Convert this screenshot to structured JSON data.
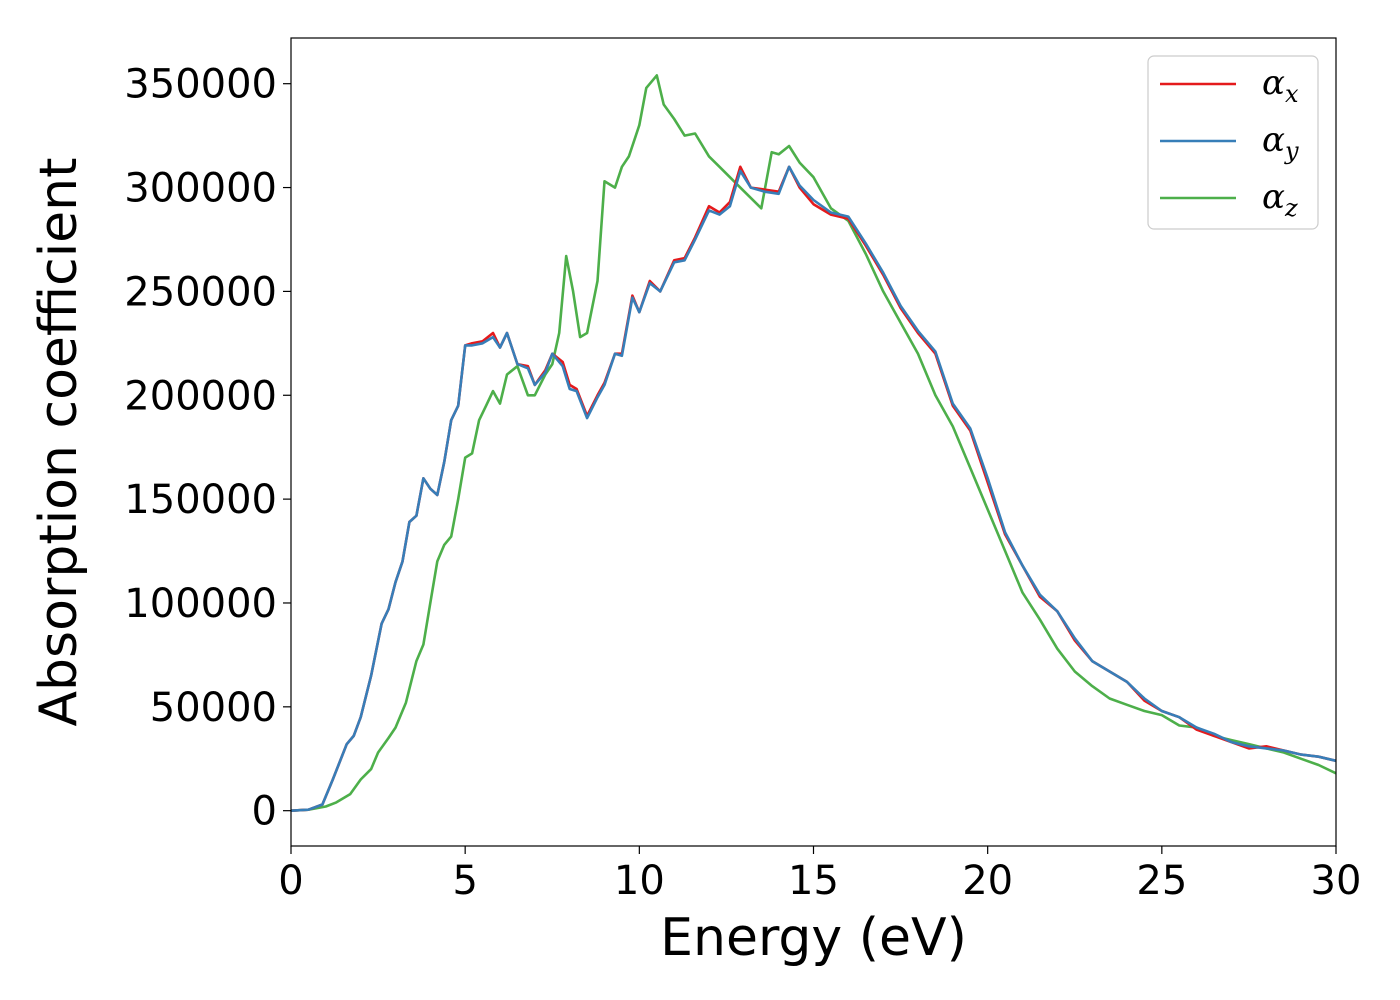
{
  "chart_data": {
    "type": "line",
    "title": "",
    "xlabel": "Energy (eV)",
    "ylabel": "Absorption coefficient",
    "xlim": [
      0,
      30
    ],
    "ylim": [
      -17000,
      372000
    ],
    "xticks": [
      0,
      5,
      10,
      15,
      20,
      25,
      30
    ],
    "yticks": [
      0,
      50000,
      100000,
      150000,
      200000,
      250000,
      300000,
      350000
    ],
    "xtick_labels": [
      "0",
      "5",
      "10",
      "15",
      "20",
      "25",
      "30"
    ],
    "ytick_labels": [
      "0",
      "50000",
      "100000",
      "150000",
      "200000",
      "250000",
      "300000",
      "350000"
    ],
    "grid": false,
    "legend_position": "top-right",
    "legend": [
      {
        "base": "α",
        "sub": "x",
        "color": "#e41a1c"
      },
      {
        "base": "α",
        "sub": "y",
        "color": "#377eb8"
      },
      {
        "base": "α",
        "sub": "z",
        "color": "#4daf4a"
      }
    ],
    "series": [
      {
        "name": "αx",
        "color": "#e41a1c",
        "x": [
          0,
          0.5,
          0.9,
          1.2,
          1.6,
          1.8,
          2.0,
          2.3,
          2.6,
          2.8,
          3.0,
          3.2,
          3.4,
          3.6,
          3.8,
          4.0,
          4.2,
          4.4,
          4.6,
          4.8,
          5.0,
          5.2,
          5.5,
          5.8,
          6.0,
          6.2,
          6.5,
          6.8,
          7.0,
          7.3,
          7.5,
          7.8,
          8.0,
          8.2,
          8.5,
          8.8,
          9.0,
          9.3,
          9.5,
          9.8,
          10.0,
          10.3,
          10.6,
          11.0,
          11.3,
          11.6,
          12.0,
          12.3,
          12.6,
          12.9,
          13.2,
          13.6,
          14.0,
          14.3,
          14.6,
          15.0,
          15.5,
          16.0,
          16.5,
          17.0,
          17.5,
          18.0,
          18.5,
          19.0,
          19.5,
          20.0,
          20.5,
          21.0,
          21.5,
          22.0,
          22.5,
          23.0,
          23.5,
          24.0,
          24.5,
          25.0,
          25.5,
          26.0,
          26.5,
          27.0,
          27.5,
          28.0,
          28.5,
          29.0,
          29.5,
          30.0
        ],
        "y": [
          0,
          500,
          3000,
          15000,
          32000,
          36000,
          45000,
          65000,
          90000,
          97000,
          110000,
          120000,
          139000,
          142000,
          160000,
          155000,
          152000,
          168000,
          188000,
          195000,
          224000,
          225000,
          226000,
          230000,
          223000,
          230000,
          215000,
          214000,
          205000,
          212000,
          220000,
          216000,
          205000,
          203000,
          190000,
          200000,
          206000,
          220000,
          220000,
          248000,
          240000,
          255000,
          250000,
          265000,
          266000,
          276000,
          291000,
          288000,
          293000,
          310000,
          300000,
          299000,
          298000,
          310000,
          300000,
          292000,
          287000,
          285000,
          272000,
          258000,
          242000,
          230000,
          220000,
          195000,
          183000,
          158000,
          133000,
          118000,
          103000,
          96000,
          82000,
          72000,
          67000,
          62000,
          53000,
          48000,
          45000,
          39000,
          36000,
          33000,
          30000,
          31000,
          29000,
          27000,
          26000,
          24000
        ]
      },
      {
        "name": "αy",
        "color": "#377eb8",
        "x": [
          0,
          0.5,
          0.9,
          1.2,
          1.6,
          1.8,
          2.0,
          2.3,
          2.6,
          2.8,
          3.0,
          3.2,
          3.4,
          3.6,
          3.8,
          4.0,
          4.2,
          4.4,
          4.6,
          4.8,
          5.0,
          5.2,
          5.5,
          5.8,
          6.0,
          6.2,
          6.5,
          6.8,
          7.0,
          7.3,
          7.5,
          7.8,
          8.0,
          8.2,
          8.5,
          8.8,
          9.0,
          9.3,
          9.5,
          9.8,
          10.0,
          10.3,
          10.6,
          11.0,
          11.3,
          11.6,
          12.0,
          12.3,
          12.6,
          12.9,
          13.2,
          13.6,
          14.0,
          14.3,
          14.6,
          15.0,
          15.5,
          16.0,
          16.5,
          17.0,
          17.5,
          18.0,
          18.5,
          19.0,
          19.5,
          20.0,
          20.5,
          21.0,
          21.5,
          22.0,
          22.5,
          23.0,
          23.5,
          24.0,
          24.5,
          25.0,
          25.5,
          26.0,
          26.5,
          27.0,
          27.5,
          28.0,
          28.5,
          29.0,
          29.5,
          30.0
        ],
        "y": [
          0,
          500,
          3000,
          15000,
          32000,
          36000,
          45000,
          65000,
          90000,
          97000,
          110000,
          120000,
          139000,
          142000,
          160000,
          155000,
          152000,
          168000,
          188000,
          195000,
          224000,
          224000,
          225000,
          228000,
          223000,
          230000,
          215000,
          213000,
          205000,
          211000,
          220000,
          214000,
          203000,
          202000,
          189000,
          199000,
          205000,
          220000,
          219000,
          247000,
          240000,
          254000,
          250000,
          264000,
          265000,
          275000,
          289000,
          287000,
          291000,
          308000,
          300000,
          298000,
          297000,
          310000,
          301000,
          294000,
          288000,
          286000,
          273000,
          259000,
          243000,
          231000,
          221000,
          196000,
          184000,
          160000,
          134000,
          118000,
          104000,
          96000,
          83000,
          72000,
          67000,
          62000,
          54000,
          48000,
          45000,
          40000,
          37000,
          33000,
          31000,
          30000,
          29000,
          27000,
          26000,
          24000
        ]
      },
      {
        "name": "αz",
        "color": "#4daf4a",
        "x": [
          0,
          0.5,
          1.0,
          1.3,
          1.7,
          2.0,
          2.3,
          2.5,
          2.8,
          3.0,
          3.3,
          3.6,
          3.8,
          4.0,
          4.2,
          4.4,
          4.6,
          4.8,
          5.0,
          5.2,
          5.4,
          5.6,
          5.8,
          6.0,
          6.2,
          6.5,
          6.8,
          7.0,
          7.3,
          7.5,
          7.7,
          7.9,
          8.1,
          8.3,
          8.5,
          8.8,
          9.0,
          9.3,
          9.5,
          9.7,
          10.0,
          10.2,
          10.5,
          10.7,
          11.0,
          11.3,
          11.6,
          12.0,
          12.3,
          12.6,
          12.9,
          13.2,
          13.5,
          13.8,
          14.0,
          14.3,
          14.6,
          15.0,
          15.5,
          16.0,
          16.5,
          17.0,
          17.5,
          18.0,
          18.5,
          19.0,
          19.5,
          20.0,
          20.5,
          21.0,
          21.5,
          22.0,
          22.5,
          23.0,
          23.5,
          24.0,
          24.5,
          25.0,
          25.5,
          26.0,
          26.5,
          27.0,
          27.5,
          28.0,
          28.5,
          29.0,
          29.5,
          30.0
        ],
        "y": [
          0,
          500,
          2000,
          4000,
          8000,
          15000,
          20000,
          28000,
          35000,
          40000,
          52000,
          72000,
          80000,
          100000,
          120000,
          128000,
          132000,
          150000,
          170000,
          172000,
          188000,
          195000,
          202000,
          196000,
          210000,
          214000,
          200000,
          200000,
          210000,
          215000,
          230000,
          267000,
          250000,
          228000,
          230000,
          255000,
          303000,
          300000,
          310000,
          315000,
          330000,
          348000,
          354000,
          340000,
          333000,
          325000,
          326000,
          315000,
          310000,
          305000,
          300000,
          295000,
          290000,
          317000,
          316000,
          320000,
          312000,
          305000,
          290000,
          284000,
          268000,
          250000,
          235000,
          220000,
          200000,
          185000,
          165000,
          145000,
          125000,
          105000,
          92000,
          78000,
          67000,
          60000,
          54000,
          51000,
          48000,
          46000,
          41000,
          40000,
          36000,
          34000,
          32000,
          30000,
          28000,
          25000,
          22000,
          18000
        ]
      }
    ]
  }
}
